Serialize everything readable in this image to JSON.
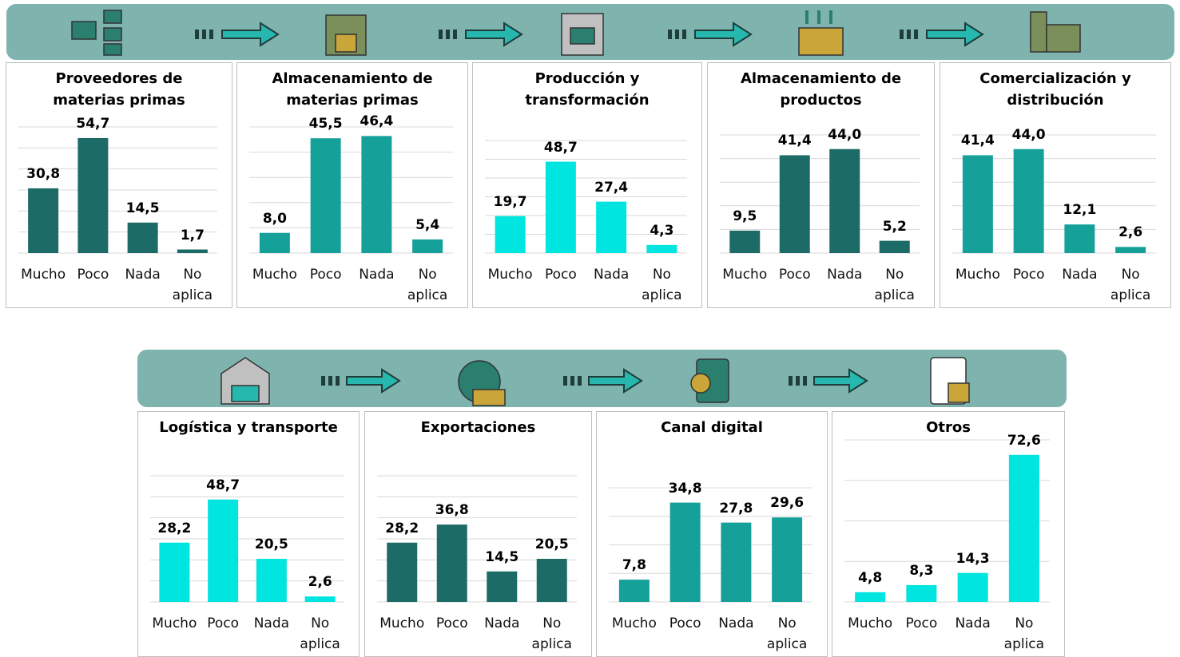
{
  "chart_data": [
    {
      "type": "bar",
      "title": "Proveedores de materias primas",
      "categories": [
        "Mucho",
        "Poco",
        "Nada",
        "No aplica"
      ],
      "values": [
        30.8,
        54.7,
        14.5,
        1.7
      ],
      "value_labels": [
        "30,8",
        "54,7",
        "14,5",
        "1,7"
      ],
      "color": "#1d6b66",
      "ylim": [
        0,
        60
      ],
      "yticks": [
        0,
        10,
        20,
        30,
        40,
        50,
        60
      ],
      "grid": true
    },
    {
      "type": "bar",
      "title": "Almacenamiento de materias primas",
      "categories": [
        "Mucho",
        "Poco",
        "Nada",
        "No aplica"
      ],
      "values": [
        8.0,
        45.5,
        46.4,
        5.4
      ],
      "value_labels": [
        "8,0",
        "45,5",
        "46,4",
        "5,4"
      ],
      "color": "#16a09a",
      "ylim": [
        0,
        50
      ],
      "yticks": [
        0,
        10,
        20,
        30,
        40,
        50
      ],
      "grid": true
    },
    {
      "type": "bar",
      "title": "Producción y transformación",
      "categories": [
        "Mucho",
        "Poco",
        "Nada",
        "No aplica"
      ],
      "values": [
        19.7,
        48.7,
        27.4,
        4.3
      ],
      "value_labels": [
        "19,7",
        "48,7",
        "27,4",
        "4,3"
      ],
      "color": "#00e5df",
      "ylim": [
        0,
        60
      ],
      "yticks": [
        0,
        10,
        20,
        30,
        40,
        50,
        60
      ],
      "grid": true
    },
    {
      "type": "bar",
      "title": "Almacenamiento de productos",
      "categories": [
        "Mucho",
        "Poco",
        "Nada",
        "No aplica"
      ],
      "values": [
        9.5,
        41.4,
        44.0,
        5.2
      ],
      "value_labels": [
        "9,5",
        "41,4",
        "44,0",
        "5,2"
      ],
      "color": "#1d6b66",
      "ylim": [
        0,
        50
      ],
      "yticks": [
        0,
        10,
        20,
        30,
        40,
        50
      ],
      "grid": true
    },
    {
      "type": "bar",
      "title": "Comercialización y distribución",
      "categories": [
        "Mucho",
        "Poco",
        "Nada",
        "No aplica"
      ],
      "values": [
        41.4,
        44.0,
        12.1,
        2.6
      ],
      "value_labels": [
        "41,4",
        "44,0",
        "12,1",
        "2,6"
      ],
      "color": "#16a09a",
      "ylim": [
        0,
        50
      ],
      "yticks": [
        0,
        10,
        20,
        30,
        40,
        50
      ],
      "grid": true
    },
    {
      "type": "bar",
      "title": "Logística y transporte",
      "categories": [
        "Mucho",
        "Poco",
        "Nada",
        "No aplica"
      ],
      "values": [
        28.2,
        48.7,
        20.5,
        2.6
      ],
      "value_labels": [
        "28,2",
        "48,7",
        "20,5",
        "2,6"
      ],
      "color": "#00e5df",
      "ylim": [
        0,
        60
      ],
      "yticks": [
        0,
        10,
        20,
        30,
        40,
        50,
        60
      ],
      "grid": true
    },
    {
      "type": "bar",
      "title": "Exportaciones",
      "categories": [
        "Mucho",
        "Poco",
        "Nada",
        "No aplica"
      ],
      "values": [
        28.2,
        36.8,
        14.5,
        20.5
      ],
      "value_labels": [
        "28,2",
        "36,8",
        "14,5",
        "20,5"
      ],
      "color": "#1d6b66",
      "ylim": [
        0,
        60
      ],
      "yticks": [
        0,
        10,
        20,
        30,
        40,
        50,
        60
      ],
      "grid": true
    },
    {
      "type": "bar",
      "title": "Canal digital",
      "categories": [
        "Mucho",
        "Poco",
        "Nada",
        "No aplica"
      ],
      "values": [
        7.8,
        34.8,
        27.8,
        29.6
      ],
      "value_labels": [
        "7,8",
        "34,8",
        "27,8",
        "29,6"
      ],
      "color": "#16a09a",
      "ylim": [
        0,
        40
      ],
      "yticks": [
        0,
        10,
        20,
        30,
        40
      ],
      "grid": true
    },
    {
      "type": "bar",
      "title": "Otros",
      "categories": [
        "Mucho",
        "Poco",
        "Nada",
        "No aplica"
      ],
      "values": [
        4.8,
        8.3,
        14.3,
        72.6
      ],
      "value_labels": [
        "4,8",
        "8,3",
        "14,3",
        "72,6"
      ],
      "color": "#00e5df",
      "ylim": [
        0,
        80
      ],
      "yticks": [
        0,
        20,
        40,
        60,
        80
      ],
      "grid": true
    }
  ]
}
